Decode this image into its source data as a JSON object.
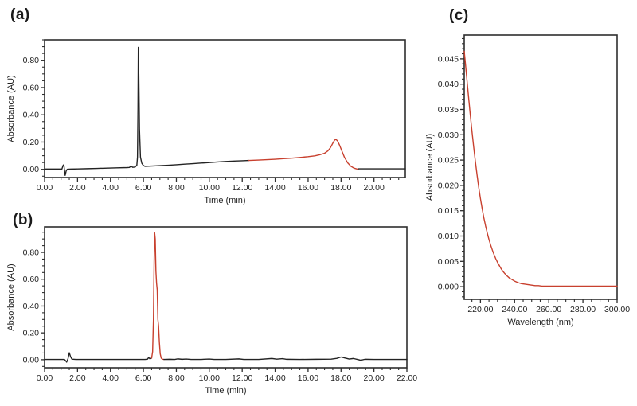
{
  "figure": {
    "background": "#ffffff",
    "description": "Three-panel HPLC chromatograms with UV spectrum"
  },
  "colors": {
    "trace_black": "#232323",
    "trace_red": "#c8402e",
    "frame": "#2e2e2e",
    "text": "#1f1f1f"
  },
  "chart_data": [
    {
      "type": "line",
      "panel_label": "(a)",
      "xlabel": "Time (min)",
      "ylabel": "Absorbance (AU)",
      "xlim": [
        0,
        21.9
      ],
      "ylim": [
        -0.06,
        0.95
      ],
      "xticks": [
        0,
        2,
        4,
        6,
        8,
        10,
        12,
        14,
        16,
        18,
        20
      ],
      "xtick_labels": [
        "0.00",
        "2.00",
        "4.00",
        "6.00",
        "8.00",
        "10.00",
        "12.00",
        "14.00",
        "16.00",
        "18.00",
        "20.00"
      ],
      "x_minor_step": 0.5,
      "yticks": [
        0,
        0.2,
        0.4,
        0.6,
        0.8
      ],
      "ytick_labels": [
        "0.00",
        "0.20",
        "0.40",
        "0.60",
        "0.80"
      ],
      "y_minor_step": 0.05,
      "grid": false,
      "legend": "none",
      "segments": [
        {
          "name": "baseline-and-main-peak",
          "color": "#232323",
          "points": [
            [
              0,
              0.002
            ],
            [
              0.6,
              0.002
            ],
            [
              1.05,
              0.002
            ],
            [
              1.12,
              0.028
            ],
            [
              1.17,
              0.034
            ],
            [
              1.21,
              -0.008
            ],
            [
              1.25,
              -0.044
            ],
            [
              1.31,
              -0.012
            ],
            [
              1.38,
              0.001
            ],
            [
              1.6,
              0.002
            ],
            [
              2.0,
              0.003
            ],
            [
              2.6,
              0.005
            ],
            [
              3.2,
              0.007
            ],
            [
              3.8,
              0.009
            ],
            [
              4.4,
              0.011
            ],
            [
              5.0,
              0.013
            ],
            [
              5.15,
              0.014
            ],
            [
              5.25,
              0.024
            ],
            [
              5.35,
              0.015
            ],
            [
              5.5,
              0.017
            ],
            [
              5.6,
              0.03
            ],
            [
              5.64,
              0.09
            ],
            [
              5.67,
              0.45
            ],
            [
              5.69,
              0.895
            ],
            [
              5.72,
              0.7
            ],
            [
              5.76,
              0.3
            ],
            [
              5.82,
              0.09
            ],
            [
              5.9,
              0.045
            ],
            [
              6.0,
              0.028
            ],
            [
              6.1,
              0.022
            ],
            [
              6.5,
              0.024
            ],
            [
              7.0,
              0.027
            ],
            [
              7.5,
              0.03
            ],
            [
              8.0,
              0.034
            ],
            [
              8.5,
              0.038
            ],
            [
              9.0,
              0.042
            ],
            [
              9.5,
              0.046
            ],
            [
              10.0,
              0.05
            ],
            [
              10.5,
              0.054
            ],
            [
              11.0,
              0.058
            ],
            [
              11.5,
              0.061
            ],
            [
              12.0,
              0.063
            ],
            [
              12.4,
              0.065
            ]
          ]
        },
        {
          "name": "eluting-peak-red",
          "color": "#c8402e",
          "points": [
            [
              12.4,
              0.065
            ],
            [
              13.0,
              0.068
            ],
            [
              13.5,
              0.071
            ],
            [
              14.0,
              0.074
            ],
            [
              14.5,
              0.078
            ],
            [
              15.0,
              0.082
            ],
            [
              15.5,
              0.087
            ],
            [
              16.0,
              0.093
            ],
            [
              16.4,
              0.099
            ],
            [
              16.7,
              0.107
            ],
            [
              17.0,
              0.118
            ],
            [
              17.2,
              0.135
            ],
            [
              17.35,
              0.158
            ],
            [
              17.5,
              0.192
            ],
            [
              17.6,
              0.213
            ],
            [
              17.68,
              0.22
            ],
            [
              17.78,
              0.21
            ],
            [
              17.9,
              0.18
            ],
            [
              18.05,
              0.135
            ],
            [
              18.2,
              0.09
            ],
            [
              18.4,
              0.048
            ],
            [
              18.6,
              0.022
            ],
            [
              18.8,
              0.008
            ],
            [
              18.95,
              0.003
            ],
            [
              19.05,
              0.002
            ]
          ]
        },
        {
          "name": "baseline-tail",
          "color": "#232323",
          "points": [
            [
              19.05,
              0.004
            ],
            [
              19.5,
              0.004
            ],
            [
              20.5,
              0.004
            ],
            [
              21.9,
              0.004
            ]
          ]
        }
      ]
    },
    {
      "type": "line",
      "panel_label": "(b)",
      "xlabel": "Time (min)",
      "ylabel": "Absorbance (AU)",
      "xlim": [
        0,
        22
      ],
      "ylim": [
        -0.06,
        0.99
      ],
      "xticks": [
        0,
        2,
        4,
        6,
        8,
        10,
        12,
        14,
        16,
        18,
        20,
        22
      ],
      "xtick_labels": [
        "0.00",
        "2.00",
        "4.00",
        "6.00",
        "8.00",
        "10.00",
        "12.00",
        "14.00",
        "16.00",
        "18.00",
        "20.00",
        "22.00"
      ],
      "x_minor_step": 0.5,
      "yticks": [
        0,
        0.2,
        0.4,
        0.6,
        0.8
      ],
      "ytick_labels": [
        "0.00",
        "0.20",
        "0.40",
        "0.60",
        "0.80"
      ],
      "y_minor_step": 0.05,
      "grid": false,
      "legend": "none",
      "segments": [
        {
          "name": "baseline-pre",
          "color": "#232323",
          "points": [
            [
              0,
              0.002
            ],
            [
              0.8,
              0.002
            ],
            [
              1.2,
              0.002
            ],
            [
              1.28,
              -0.008
            ],
            [
              1.34,
              -0.018
            ],
            [
              1.42,
              0.006
            ],
            [
              1.5,
              0.052
            ],
            [
              1.58,
              0.022
            ],
            [
              1.66,
              0.004
            ],
            [
              1.9,
              0.002
            ],
            [
              2.5,
              0.002
            ],
            [
              3.5,
              0.002
            ],
            [
              4.5,
              0.002
            ],
            [
              5.5,
              0.002
            ],
            [
              6.1,
              0.002
            ],
            [
              6.25,
              0.004
            ],
            [
              6.32,
              0.016
            ],
            [
              6.4,
              0.006
            ],
            [
              6.5,
              0.012
            ]
          ]
        },
        {
          "name": "main-peak-red",
          "color": "#c8402e",
          "points": [
            [
              6.5,
              0.012
            ],
            [
              6.56,
              0.06
            ],
            [
              6.61,
              0.3
            ],
            [
              6.65,
              0.72
            ],
            [
              6.68,
              0.95
            ],
            [
              6.72,
              0.9
            ],
            [
              6.76,
              0.66
            ],
            [
              6.8,
              0.57
            ],
            [
              6.84,
              0.52
            ],
            [
              6.88,
              0.3
            ],
            [
              6.92,
              0.255
            ],
            [
              6.97,
              0.13
            ],
            [
              7.02,
              0.045
            ],
            [
              7.08,
              0.012
            ],
            [
              7.15,
              0.004
            ],
            [
              7.25,
              0.002
            ]
          ]
        },
        {
          "name": "baseline-post",
          "color": "#232323",
          "points": [
            [
              7.25,
              0.002
            ],
            [
              7.6,
              0.003
            ],
            [
              7.9,
              0.002
            ],
            [
              8.1,
              0.006
            ],
            [
              8.35,
              0.003
            ],
            [
              8.6,
              0.005
            ],
            [
              8.9,
              0.002
            ],
            [
              9.5,
              0.002
            ],
            [
              10.0,
              0.005
            ],
            [
              10.3,
              0.002
            ],
            [
              11.0,
              0.002
            ],
            [
              11.8,
              0.006
            ],
            [
              12.1,
              0.002
            ],
            [
              13.0,
              0.002
            ],
            [
              13.8,
              0.009
            ],
            [
              14.1,
              0.004
            ],
            [
              14.45,
              0.008
            ],
            [
              14.7,
              0.003
            ],
            [
              15.5,
              0.002
            ],
            [
              16.5,
              0.003
            ],
            [
              17.4,
              0.004
            ],
            [
              17.75,
              0.01
            ],
            [
              18.0,
              0.02
            ],
            [
              18.25,
              0.012
            ],
            [
              18.5,
              0.005
            ],
            [
              18.75,
              0.009
            ],
            [
              19.0,
              0.002
            ],
            [
              19.2,
              -0.004
            ],
            [
              19.45,
              0.003
            ],
            [
              20.0,
              0.002
            ],
            [
              21.0,
              0.002
            ],
            [
              22.0,
              0.002
            ]
          ]
        }
      ]
    },
    {
      "type": "line",
      "panel_label": "(c)",
      "xlabel": "Wavelength (nm)",
      "ylabel": "Absorbance (AU)",
      "xlim": [
        210.5,
        300
      ],
      "ylim": [
        -0.0025,
        0.0497
      ],
      "xticks": [
        220,
        240,
        260,
        280,
        300
      ],
      "xtick_labels": [
        "220.00",
        "240.00",
        "260.00",
        "280.00",
        "300.00"
      ],
      "x_minor_step": 5,
      "yticks": [
        0,
        0.005,
        0.01,
        0.015,
        0.02,
        0.025,
        0.03,
        0.035,
        0.04,
        0.045
      ],
      "ytick_labels": [
        "0.000",
        "0.005",
        "0.010",
        "0.015",
        "0.020",
        "0.025",
        "0.030",
        "0.035",
        "0.040",
        "0.045"
      ],
      "y_minor_step": 0.001,
      "grid": false,
      "legend": "none",
      "segments": [
        {
          "name": "uv-spectrum-red",
          "color": "#c8402e",
          "points": [
            [
              210.5,
              0.0465
            ],
            [
              211,
              0.0448
            ],
            [
              212,
              0.0412
            ],
            [
              213,
              0.0376
            ],
            [
              214,
              0.0341
            ],
            [
              215,
              0.0308
            ],
            [
              216,
              0.0277
            ],
            [
              217,
              0.0248
            ],
            [
              218,
              0.0221
            ],
            [
              219,
              0.0196
            ],
            [
              220,
              0.0174
            ],
            [
              221,
              0.0154
            ],
            [
              222,
              0.0136
            ],
            [
              223,
              0.012
            ],
            [
              224,
              0.0106
            ],
            [
              225,
              0.0093
            ],
            [
              226,
              0.0082
            ],
            [
              227,
              0.0072
            ],
            [
              228,
              0.0063
            ],
            [
              229,
              0.0055
            ],
            [
              230,
              0.0048
            ],
            [
              231,
              0.0042
            ],
            [
              232,
              0.0036
            ],
            [
              233,
              0.0031
            ],
            [
              234,
              0.0027
            ],
            [
              235,
              0.0023
            ],
            [
              236,
              0.002
            ],
            [
              237,
              0.0017
            ],
            [
              238,
              0.0015
            ],
            [
              239,
              0.0013
            ],
            [
              240,
              0.0011
            ],
            [
              242,
              0.0008
            ],
            [
              244,
              0.0006
            ],
            [
              246,
              0.0005
            ],
            [
              248,
              0.0004
            ],
            [
              250,
              0.0003
            ],
            [
              252,
              0.0002
            ],
            [
              254,
              0.0002
            ],
            [
              256,
              0.0001
            ],
            [
              258,
              0.0001
            ],
            [
              260,
              0.0001
            ],
            [
              265,
              0.0001
            ],
            [
              270,
              0.0001
            ],
            [
              275,
              0.0001
            ],
            [
              280,
              0.0001
            ],
            [
              285,
              0.0001
            ],
            [
              290,
              0.0001
            ],
            [
              295,
              0.0001
            ],
            [
              300,
              0.0001
            ]
          ]
        }
      ]
    }
  ]
}
